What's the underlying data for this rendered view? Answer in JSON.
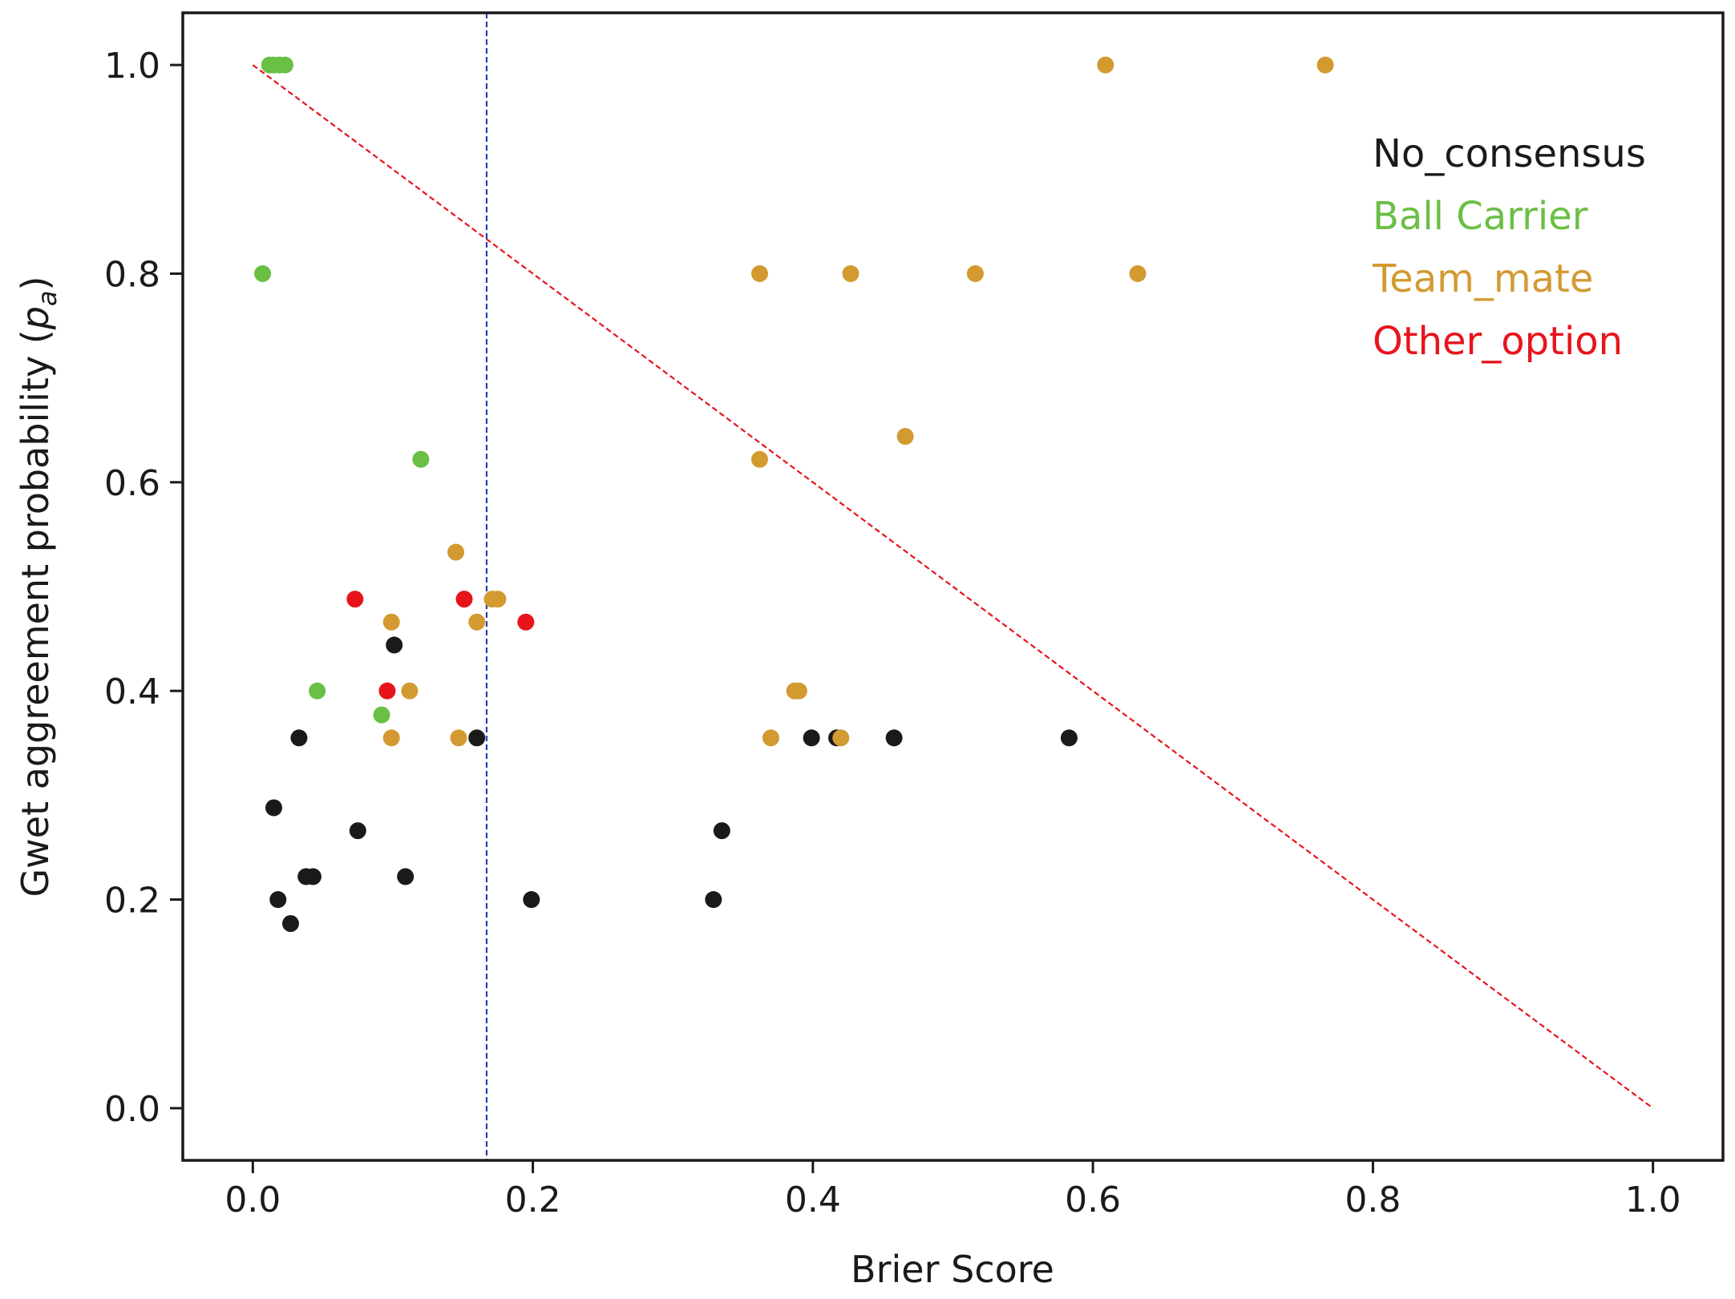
{
  "chart_data": {
    "type": "scatter",
    "title": "",
    "xlabel": "Brier Score",
    "ylabel_main": "Gwet aggreement probability (",
    "ylabel_var": "p",
    "ylabel_sub": "a",
    "ylabel_close": ")",
    "xlim": [
      -0.05,
      1.05
    ],
    "ylim": [
      -0.05,
      1.05
    ],
    "xticks": [
      0.0,
      0.2,
      0.4,
      0.6,
      0.8,
      1.0
    ],
    "xtick_labels": [
      "0.0",
      "0.2",
      "0.4",
      "0.6",
      "0.8",
      "1.0"
    ],
    "yticks": [
      0.0,
      0.2,
      0.4,
      0.6,
      0.8,
      1.0
    ],
    "ytick_labels": [
      "0.0",
      "0.2",
      "0.4",
      "0.6",
      "0.8",
      "1.0"
    ],
    "legend_position": "top-right",
    "reference_lines": [
      {
        "name": "diagonal",
        "color": "#e8141c",
        "style": "dashed",
        "points": [
          [
            0.0,
            1.0
          ],
          [
            1.0,
            0.0
          ]
        ]
      },
      {
        "name": "vertical",
        "color": "#2b3fb0",
        "style": "dashed",
        "x": 0.167
      }
    ],
    "series": [
      {
        "name": "No_consensus",
        "color": "#1a1a1a",
        "points": [
          [
            0.015,
            0.288
          ],
          [
            0.018,
            0.2
          ],
          [
            0.027,
            0.177
          ],
          [
            0.033,
            0.355
          ],
          [
            0.038,
            0.222
          ],
          [
            0.043,
            0.222
          ],
          [
            0.075,
            0.266
          ],
          [
            0.101,
            0.444
          ],
          [
            0.109,
            0.222
          ],
          [
            0.16,
            0.355
          ],
          [
            0.199,
            0.2
          ],
          [
            0.329,
            0.2
          ],
          [
            0.335,
            0.266
          ],
          [
            0.399,
            0.355
          ],
          [
            0.417,
            0.355
          ],
          [
            0.458,
            0.355
          ],
          [
            0.583,
            0.355
          ]
        ]
      },
      {
        "name": "Ball Carrier",
        "color": "#6abf45",
        "points": [
          [
            0.012,
            1.0
          ],
          [
            0.015,
            1.0
          ],
          [
            0.019,
            1.0
          ],
          [
            0.023,
            1.0
          ],
          [
            0.007,
            0.8
          ],
          [
            0.12,
            0.622
          ],
          [
            0.046,
            0.4
          ],
          [
            0.092,
            0.377
          ]
        ]
      },
      {
        "name": "Team_mate",
        "color": "#d39a31",
        "points": [
          [
            0.609,
            1.0
          ],
          [
            0.766,
            1.0
          ],
          [
            0.362,
            0.8
          ],
          [
            0.427,
            0.8
          ],
          [
            0.516,
            0.8
          ],
          [
            0.632,
            0.8
          ],
          [
            0.466,
            0.644
          ],
          [
            0.362,
            0.622
          ],
          [
            0.145,
            0.533
          ],
          [
            0.171,
            0.488
          ],
          [
            0.175,
            0.488
          ],
          [
            0.099,
            0.466
          ],
          [
            0.16,
            0.466
          ],
          [
            0.112,
            0.4
          ],
          [
            0.387,
            0.4
          ],
          [
            0.39,
            0.4
          ],
          [
            0.099,
            0.355
          ],
          [
            0.147,
            0.355
          ],
          [
            0.37,
            0.355
          ],
          [
            0.42,
            0.355
          ]
        ]
      },
      {
        "name": "Other_option",
        "color": "#e8141c",
        "points": [
          [
            0.073,
            0.488
          ],
          [
            0.151,
            0.488
          ],
          [
            0.195,
            0.466
          ],
          [
            0.096,
            0.4
          ]
        ]
      }
    ]
  }
}
